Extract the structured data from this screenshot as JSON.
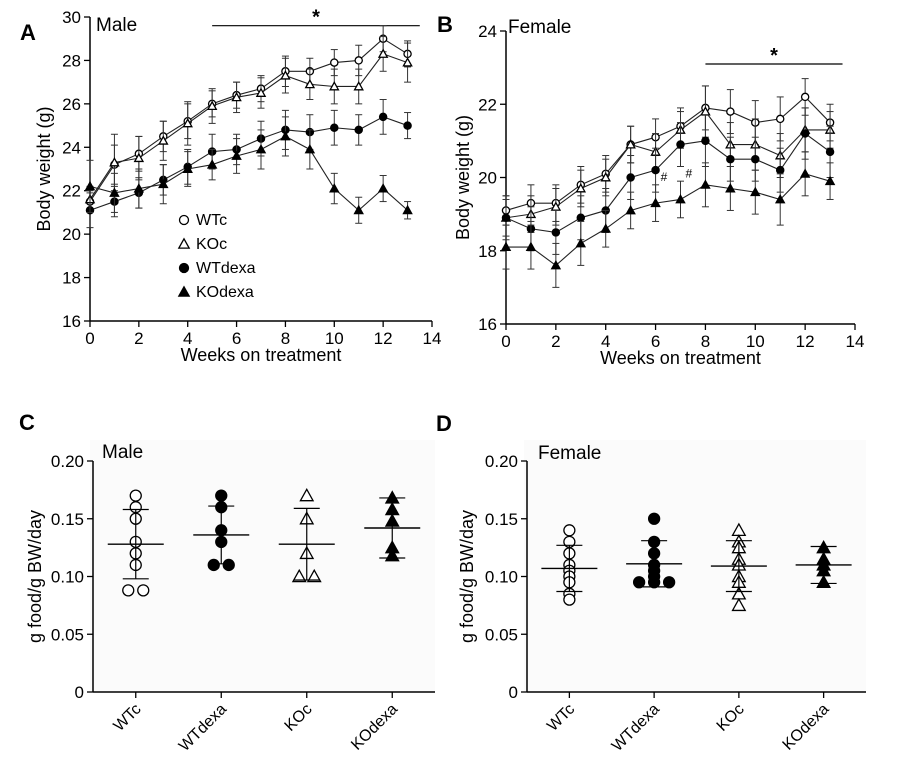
{
  "chart_data": [
    {
      "panel": "A",
      "type": "line",
      "title": "Male",
      "xlabel": "Weeks on treatment",
      "ylabel": "Body weight (g)",
      "xlim": [
        0,
        14
      ],
      "ylim": [
        16,
        30
      ],
      "xticks": [
        0,
        2,
        4,
        6,
        8,
        10,
        12,
        14
      ],
      "yticks": [
        16,
        18,
        20,
        22,
        24,
        26,
        28,
        30
      ],
      "x": [
        0,
        1,
        2,
        3,
        4,
        5,
        6,
        7,
        8,
        9,
        10,
        11,
        12,
        13
      ],
      "series": [
        {
          "name": "WTc",
          "marker": "circle-open",
          "values": [
            21.5,
            23.2,
            23.7,
            24.5,
            25.2,
            26.0,
            26.4,
            26.7,
            27.5,
            27.5,
            27.9,
            28.0,
            29.0,
            28.3
          ],
          "errors": [
            0.5,
            0.9,
            0.8,
            0.7,
            0.8,
            0.6,
            0.6,
            0.6,
            0.7,
            0.6,
            0.6,
            0.7,
            0.6,
            0.6
          ]
        },
        {
          "name": "KOc",
          "marker": "triangle-open",
          "values": [
            21.6,
            23.3,
            23.5,
            24.3,
            25.1,
            25.9,
            26.3,
            26.5,
            27.3,
            26.9,
            26.8,
            26.8,
            28.3,
            27.9
          ],
          "errors": [
            0.6,
            1.3,
            1.0,
            0.9,
            1.0,
            0.8,
            0.7,
            0.7,
            0.8,
            0.7,
            0.8,
            0.8,
            0.8,
            0.9
          ]
        },
        {
          "name": "WTdexa",
          "marker": "circle-filled",
          "values": [
            21.1,
            21.5,
            21.9,
            22.5,
            23.1,
            23.8,
            23.9,
            24.4,
            24.8,
            24.7,
            24.9,
            24.8,
            25.4,
            25.0
          ],
          "errors": [
            0.8,
            0.7,
            0.7,
            0.7,
            0.8,
            0.8,
            0.7,
            0.8,
            0.9,
            0.8,
            0.8,
            0.7,
            0.8,
            0.6
          ]
        },
        {
          "name": "KOdexa",
          "marker": "triangle-filled",
          "values": [
            22.2,
            21.9,
            22.1,
            22.3,
            23.0,
            23.2,
            23.6,
            23.9,
            24.5,
            23.9,
            22.1,
            21.1,
            22.1,
            21.1
          ],
          "errors": [
            1.2,
            0.9,
            0.9,
            0.9,
            0.8,
            0.7,
            0.8,
            0.9,
            0.9,
            0.9,
            0.7,
            0.6,
            0.6,
            0.4
          ]
        }
      ],
      "significance": {
        "label": "*",
        "x_from": 5,
        "x_to": 13.5
      },
      "legend": {
        "placement": "lower-middle",
        "entries": [
          "WTc",
          "KOc",
          "WTdexa",
          "KOdexa"
        ]
      }
    },
    {
      "panel": "B",
      "type": "line",
      "title": "Female",
      "xlabel": "Weeks on treatment",
      "ylabel": "Body weight (g)",
      "xlim": [
        0,
        14
      ],
      "ylim": [
        16,
        24
      ],
      "xticks": [
        0,
        2,
        4,
        6,
        8,
        10,
        12,
        14
      ],
      "yticks": [
        16,
        18,
        20,
        22,
        24
      ],
      "x": [
        0,
        1,
        2,
        3,
        4,
        5,
        6,
        7,
        8,
        9,
        10,
        11,
        12,
        13
      ],
      "series": [
        {
          "name": "WTc",
          "marker": "circle-open",
          "values": [
            19.1,
            19.3,
            19.3,
            19.8,
            20.1,
            20.9,
            21.1,
            21.4,
            21.9,
            21.8,
            21.5,
            21.6,
            22.2,
            21.5
          ],
          "errors": [
            0.4,
            0.5,
            0.5,
            0.5,
            0.5,
            0.5,
            0.5,
            0.5,
            0.6,
            0.6,
            0.6,
            0.6,
            0.5,
            0.5
          ]
        },
        {
          "name": "KOc",
          "marker": "triangle-open",
          "values": [
            18.9,
            19.0,
            19.2,
            19.7,
            20.0,
            20.9,
            20.7,
            21.3,
            21.8,
            20.9,
            20.9,
            20.6,
            21.3,
            21.3
          ],
          "errors": [
            0.5,
            0.5,
            0.5,
            0.5,
            0.5,
            0.5,
            0.5,
            0.5,
            0.7,
            0.6,
            0.7,
            0.6,
            0.6,
            0.5
          ]
        },
        {
          "name": "WTdexa",
          "marker": "circle-filled",
          "values": [
            18.9,
            18.6,
            18.5,
            18.9,
            19.1,
            20.0,
            20.2,
            20.9,
            21.0,
            20.5,
            20.5,
            20.2,
            21.2,
            20.7
          ],
          "errors": [
            0.6,
            0.6,
            0.6,
            0.6,
            0.6,
            0.6,
            0.6,
            0.6,
            0.7,
            0.6,
            0.6,
            0.6,
            0.7,
            0.7
          ]
        },
        {
          "name": "KOdexa",
          "marker": "triangle-filled",
          "values": [
            18.1,
            18.1,
            17.6,
            18.2,
            18.6,
            19.1,
            19.3,
            19.4,
            19.8,
            19.7,
            19.6,
            19.4,
            20.1,
            19.9
          ],
          "errors": [
            0.6,
            0.6,
            0.6,
            0.6,
            0.5,
            0.5,
            0.5,
            0.5,
            0.6,
            0.6,
            0.6,
            0.7,
            0.6,
            0.5
          ]
        }
      ],
      "significance": {
        "label": "*",
        "x_from": 8,
        "x_to": 13.5
      },
      "hash_marks": [
        {
          "label": "#",
          "x": 6,
          "y": 19.9
        },
        {
          "label": "#",
          "x": 7,
          "y": 20.0
        }
      ]
    },
    {
      "panel": "C",
      "type": "scatter",
      "title": "Male",
      "ylabel": "g food/g BW/day",
      "ylim": [
        0,
        0.2
      ],
      "yticks": [
        "0",
        "0.05",
        "0.10",
        "0.15",
        "0.20"
      ],
      "categories": [
        "WTc",
        "WTdexa",
        "KOc",
        "KOdexa"
      ],
      "markers": [
        "circle-open",
        "circle-filled",
        "triangle-open",
        "triangle-filled"
      ],
      "points": [
        [
          0.17,
          0.16,
          0.15,
          0.13,
          0.12,
          0.11,
          0.088,
          0.088
        ],
        [
          0.17,
          0.16,
          0.14,
          0.13,
          0.11,
          0.11
        ],
        [
          0.17,
          0.15,
          0.12,
          0.1,
          0.1
        ],
        [
          0.168,
          0.158,
          0.148,
          0.125,
          0.118
        ]
      ],
      "mean": [
        0.128,
        0.136,
        0.128,
        0.142
      ],
      "sd": [
        0.03,
        0.025,
        0.031,
        0.026
      ]
    },
    {
      "panel": "D",
      "type": "scatter",
      "title": "Female",
      "ylabel": "g food/g BW/day",
      "ylim": [
        0,
        0.2
      ],
      "yticks": [
        "0",
        "0.05",
        "0.10",
        "0.15",
        "0.20"
      ],
      "categories": [
        "WTc",
        "WTdexa",
        "KOc",
        "KOdexa"
      ],
      "markers": [
        "circle-open",
        "circle-filled",
        "triangle-open",
        "triangle-filled"
      ],
      "points": [
        [
          0.14,
          0.13,
          0.12,
          0.11,
          0.105,
          0.1,
          0.095,
          0.085,
          0.08
        ],
        [
          0.15,
          0.13,
          0.12,
          0.11,
          0.105,
          0.1,
          0.095,
          0.095,
          0.095
        ],
        [
          0.14,
          0.13,
          0.125,
          0.115,
          0.11,
          0.1,
          0.095,
          0.085,
          0.075
        ],
        [
          0.125,
          0.115,
          0.11,
          0.105,
          0.095
        ]
      ],
      "mean": [
        0.107,
        0.111,
        0.109,
        0.11
      ],
      "sd": [
        0.02,
        0.02,
        0.022,
        0.016
      ]
    }
  ]
}
